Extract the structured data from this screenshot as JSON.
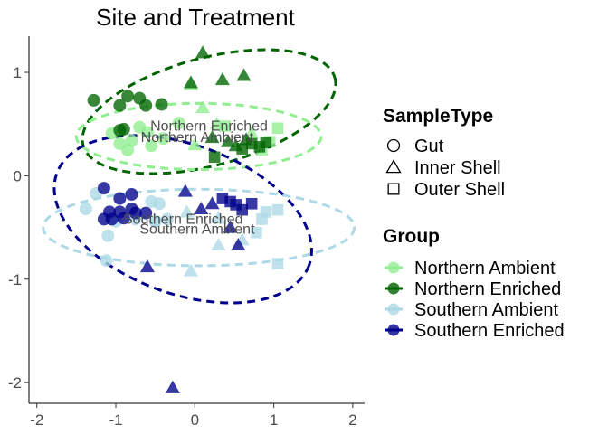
{
  "chart_data": {
    "type": "scatter",
    "title": "Site and Treatment",
    "xlabel": "",
    "ylabel": "",
    "xlim": [
      -2.1,
      2.15
    ],
    "ylim": [
      -2.2,
      1.35
    ],
    "x_ticks": [
      -2,
      -1,
      0,
      1,
      2
    ],
    "y_ticks": [
      -2,
      -1,
      0,
      1
    ],
    "x_tick_labels": [
      "-2",
      "-1",
      "0",
      "1",
      "2"
    ],
    "y_tick_labels": [
      "-2",
      "-1",
      "0",
      "1"
    ],
    "grid": false,
    "legend_placement": "right",
    "shape_legend": {
      "title": "SampleType",
      "items": [
        {
          "label": "Gut",
          "shape": "circle"
        },
        {
          "label": "Inner Shell",
          "shape": "triangle"
        },
        {
          "label": "Outer Shell",
          "shape": "square"
        }
      ]
    },
    "color_legend": {
      "title": "Group",
      "items": [
        {
          "label": "Northern Ambient",
          "color": "#90ee90"
        },
        {
          "label": "Northern Enriched",
          "color": "#006400"
        },
        {
          "label": "Southern Ambient",
          "color": "#add8e6"
        },
        {
          "label": "Southern Enriched",
          "color": "#00008b"
        }
      ]
    },
    "group_labels": [
      {
        "text": "Northern Enriched",
        "x": 0.18,
        "y": 0.49
      },
      {
        "text": "Northern Ambient",
        "x": 0.03,
        "y": 0.38
      },
      {
        "text": "Southern Enriched",
        "x": -0.15,
        "y": -0.41
      },
      {
        "text": "Southern Ambient",
        "x": 0.03,
        "y": -0.51
      }
    ],
    "ellipses": [
      {
        "group": "Northern Enriched",
        "color": "#006400",
        "cx": 0.18,
        "cy": 0.62,
        "rx": 1.65,
        "ry": 0.52,
        "angle": -15
      },
      {
        "group": "Northern Ambient",
        "color": "#90ee90",
        "cx": 0.05,
        "cy": 0.38,
        "rx": 1.55,
        "ry": 0.32,
        "angle": 0
      },
      {
        "group": "Southern Enriched",
        "color": "#00008b",
        "cx": -0.15,
        "cy": -0.42,
        "rx": 1.7,
        "ry": 0.72,
        "angle": 20
      },
      {
        "group": "Southern Ambient",
        "color": "#add8e6",
        "cx": 0.05,
        "cy": -0.5,
        "rx": 1.97,
        "ry": 0.37,
        "angle": 0
      }
    ],
    "series": [
      {
        "name": "Northern Ambient",
        "color": "#90ee90",
        "points": [
          {
            "x": -1.05,
            "y": 0.41,
            "shape": "circle"
          },
          {
            "x": -0.95,
            "y": 0.31,
            "shape": "circle"
          },
          {
            "x": -0.85,
            "y": 0.25,
            "shape": "circle"
          },
          {
            "x": -0.8,
            "y": 0.34,
            "shape": "circle"
          },
          {
            "x": -0.7,
            "y": 0.47,
            "shape": "circle"
          },
          {
            "x": -0.6,
            "y": 0.42,
            "shape": "circle"
          },
          {
            "x": -0.55,
            "y": 0.29,
            "shape": "circle"
          },
          {
            "x": -0.4,
            "y": 0.36,
            "shape": "circle"
          },
          {
            "x": -0.2,
            "y": 0.51,
            "shape": "circle"
          },
          {
            "x": -0.05,
            "y": 0.88,
            "shape": "triangle"
          },
          {
            "x": 0.0,
            "y": 0.3,
            "shape": "triangle"
          },
          {
            "x": 0.1,
            "y": 0.66,
            "shape": "triangle"
          },
          {
            "x": 0.28,
            "y": 0.5,
            "shape": "triangle"
          },
          {
            "x": 0.72,
            "y": 0.41,
            "shape": "triangle"
          },
          {
            "x": 0.38,
            "y": 0.48,
            "shape": "square"
          },
          {
            "x": 0.85,
            "y": 0.25,
            "shape": "square"
          },
          {
            "x": 1.05,
            "y": 0.46,
            "shape": "square"
          },
          {
            "x": 0.95,
            "y": 0.33,
            "shape": "square"
          }
        ]
      },
      {
        "name": "Northern Enriched",
        "color": "#006400",
        "points": [
          {
            "x": -1.28,
            "y": 0.73,
            "shape": "circle"
          },
          {
            "x": -0.95,
            "y": 0.68,
            "shape": "circle"
          },
          {
            "x": -0.85,
            "y": 0.77,
            "shape": "circle"
          },
          {
            "x": -0.7,
            "y": 0.75,
            "shape": "circle"
          },
          {
            "x": -0.62,
            "y": 0.68,
            "shape": "circle"
          },
          {
            "x": -0.42,
            "y": 0.69,
            "shape": "circle"
          },
          {
            "x": -0.95,
            "y": 0.44,
            "shape": "circle"
          },
          {
            "x": -0.9,
            "y": 0.45,
            "shape": "circle"
          },
          {
            "x": 0.1,
            "y": 1.19,
            "shape": "triangle"
          },
          {
            "x": -0.05,
            "y": 0.9,
            "shape": "triangle"
          },
          {
            "x": 0.35,
            "y": 0.93,
            "shape": "triangle"
          },
          {
            "x": 0.62,
            "y": 0.97,
            "shape": "triangle"
          },
          {
            "x": 0.22,
            "y": 0.37,
            "shape": "triangle"
          },
          {
            "x": 0.42,
            "y": 0.33,
            "shape": "triangle"
          },
          {
            "x": 0.65,
            "y": 0.35,
            "shape": "triangle"
          },
          {
            "x": 0.52,
            "y": 0.29,
            "shape": "triangle"
          },
          {
            "x": 0.6,
            "y": 0.26,
            "shape": "square"
          },
          {
            "x": 0.72,
            "y": 0.31,
            "shape": "square"
          },
          {
            "x": 0.82,
            "y": 0.28,
            "shape": "square"
          },
          {
            "x": 0.9,
            "y": 0.32,
            "shape": "square"
          },
          {
            "x": 0.25,
            "y": 0.18,
            "shape": "square"
          }
        ]
      },
      {
        "name": "Southern Ambient",
        "color": "#add8e6",
        "points": [
          {
            "x": -1.38,
            "y": -0.32,
            "shape": "circle"
          },
          {
            "x": -1.25,
            "y": -0.17,
            "shape": "circle"
          },
          {
            "x": -1.1,
            "y": -0.58,
            "shape": "circle"
          },
          {
            "x": -1.12,
            "y": -0.82,
            "shape": "circle"
          },
          {
            "x": -1.0,
            "y": -0.44,
            "shape": "circle"
          },
          {
            "x": -0.75,
            "y": -0.42,
            "shape": "circle"
          },
          {
            "x": -0.55,
            "y": -0.25,
            "shape": "circle"
          },
          {
            "x": -0.45,
            "y": -0.27,
            "shape": "circle"
          },
          {
            "x": -0.5,
            "y": -0.44,
            "shape": "circle"
          },
          {
            "x": -0.35,
            "y": -0.42,
            "shape": "circle"
          },
          {
            "x": -0.5,
            "y": -0.44,
            "shape": "circle"
          },
          {
            "x": -0.05,
            "y": -0.92,
            "shape": "triangle"
          },
          {
            "x": -0.1,
            "y": -0.35,
            "shape": "triangle"
          },
          {
            "x": 0.3,
            "y": -0.67,
            "shape": "triangle"
          },
          {
            "x": 0.3,
            "y": -0.41,
            "shape": "triangle"
          },
          {
            "x": 0.6,
            "y": -0.62,
            "shape": "triangle"
          },
          {
            "x": 0.78,
            "y": -0.55,
            "shape": "square"
          },
          {
            "x": 0.9,
            "y": -0.35,
            "shape": "square"
          },
          {
            "x": 1.05,
            "y": -0.85,
            "shape": "square"
          },
          {
            "x": 1.05,
            "y": -0.33,
            "shape": "square"
          },
          {
            "x": 0.85,
            "y": -0.42,
            "shape": "square"
          }
        ]
      },
      {
        "name": "Southern Enriched",
        "color": "#00008b",
        "points": [
          {
            "x": -1.15,
            "y": -0.12,
            "shape": "circle"
          },
          {
            "x": -1.08,
            "y": -0.35,
            "shape": "circle"
          },
          {
            "x": -1.15,
            "y": -0.42,
            "shape": "circle"
          },
          {
            "x": -1.05,
            "y": -0.42,
            "shape": "circle"
          },
          {
            "x": -0.95,
            "y": -0.22,
            "shape": "circle"
          },
          {
            "x": -0.95,
            "y": -0.35,
            "shape": "circle"
          },
          {
            "x": -0.9,
            "y": -0.41,
            "shape": "circle"
          },
          {
            "x": -0.8,
            "y": -0.18,
            "shape": "circle"
          },
          {
            "x": -0.8,
            "y": -0.32,
            "shape": "circle"
          },
          {
            "x": -0.75,
            "y": -0.36,
            "shape": "circle"
          },
          {
            "x": -0.62,
            "y": -0.36,
            "shape": "circle"
          },
          {
            "x": -0.6,
            "y": -0.88,
            "shape": "triangle"
          },
          {
            "x": -0.28,
            "y": -2.05,
            "shape": "triangle"
          },
          {
            "x": -0.12,
            "y": -0.15,
            "shape": "triangle"
          },
          {
            "x": 0.08,
            "y": -0.32,
            "shape": "triangle"
          },
          {
            "x": 0.22,
            "y": -0.27,
            "shape": "triangle"
          },
          {
            "x": 0.45,
            "y": -0.5,
            "shape": "triangle"
          },
          {
            "x": 0.55,
            "y": -0.67,
            "shape": "triangle"
          },
          {
            "x": 0.35,
            "y": -0.22,
            "shape": "square"
          },
          {
            "x": 0.45,
            "y": -0.25,
            "shape": "square"
          },
          {
            "x": 0.52,
            "y": -0.28,
            "shape": "square"
          },
          {
            "x": 0.6,
            "y": -0.33,
            "shape": "square"
          },
          {
            "x": 0.72,
            "y": -0.27,
            "shape": "square"
          }
        ]
      }
    ]
  }
}
